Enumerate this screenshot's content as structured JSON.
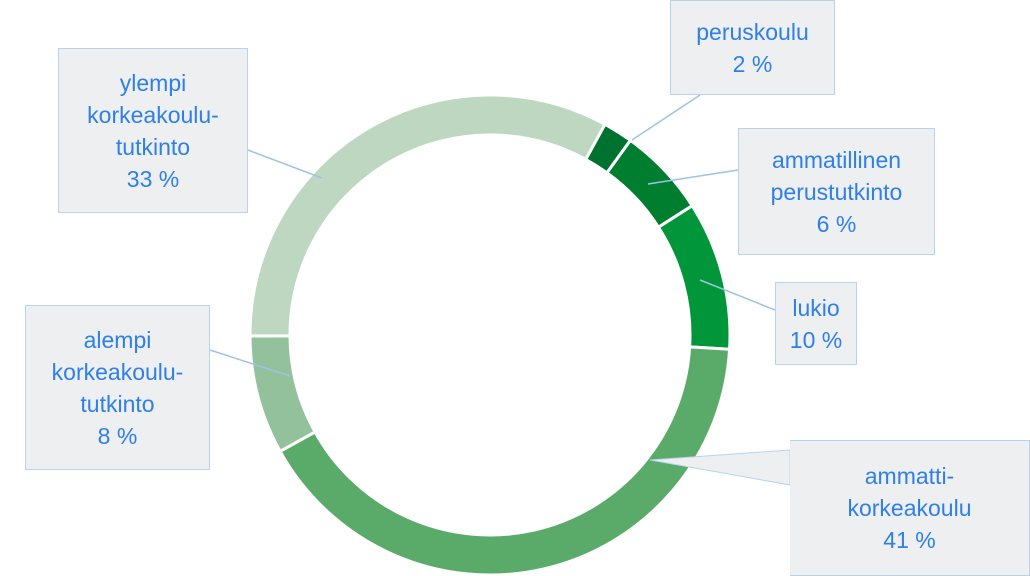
{
  "chart_data": {
    "type": "pie",
    "categories": [
      "peruskoulu",
      "ammatillinen perustutkinto",
      "lukio",
      "ammatti-korkeakoulu",
      "alempi korkeakoulu-tutkinto",
      "ylempi korkeakoulu-tutkinto"
    ],
    "values": [
      2,
      6,
      10,
      41,
      8,
      33
    ],
    "value_labels": [
      "2 %",
      "6 %",
      "10 %",
      "41 %",
      "8 %",
      "33 %"
    ],
    "colors": [
      "#00722f",
      "#007e30",
      "#009639",
      "#5aab69",
      "#93c19b",
      "#bdd7c0"
    ]
  }
}
